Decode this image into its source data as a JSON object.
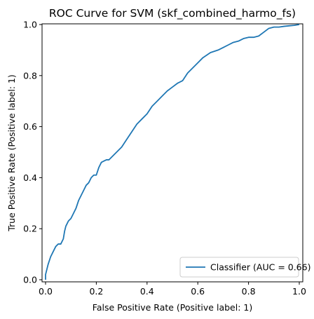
{
  "chart_data": {
    "type": "line",
    "title": "ROC Curve for SVM (skf_combined_harmo_fs)",
    "xlabel": "False Positive Rate (Positive label: 1)",
    "ylabel": "True Positive Rate (Positive label: 1)",
    "xlim": [
      0,
      1
    ],
    "ylim": [
      0,
      1
    ],
    "x_ticks": [
      "0.0",
      "0.2",
      "0.4",
      "0.6",
      "0.8",
      "1.0"
    ],
    "y_ticks": [
      "0.0",
      "0.2",
      "0.4",
      "0.6",
      "0.8",
      "1.0"
    ],
    "grid": false,
    "legend_position": "lower-right",
    "series": [
      {
        "name": "Classifier (AUC = 0.66)",
        "color": "#1f77b4",
        "x": [
          0.0,
          0.0,
          0.005,
          0.01,
          0.02,
          0.03,
          0.04,
          0.05,
          0.06,
          0.07,
          0.075,
          0.08,
          0.085,
          0.09,
          0.1,
          0.11,
          0.12,
          0.13,
          0.14,
          0.15,
          0.16,
          0.17,
          0.18,
          0.19,
          0.2,
          0.21,
          0.22,
          0.23,
          0.24,
          0.25,
          0.27,
          0.3,
          0.32,
          0.34,
          0.36,
          0.38,
          0.4,
          0.42,
          0.44,
          0.46,
          0.48,
          0.5,
          0.52,
          0.54,
          0.56,
          0.58,
          0.6,
          0.62,
          0.65,
          0.68,
          0.7,
          0.72,
          0.74,
          0.76,
          0.78,
          0.8,
          0.82,
          0.84,
          0.86,
          0.88,
          0.9,
          0.92,
          0.94,
          0.96,
          0.98,
          1.0
        ],
        "y": [
          0.0,
          0.02,
          0.04,
          0.06,
          0.09,
          0.11,
          0.13,
          0.14,
          0.14,
          0.16,
          0.19,
          0.21,
          0.22,
          0.23,
          0.24,
          0.26,
          0.28,
          0.31,
          0.33,
          0.35,
          0.37,
          0.38,
          0.4,
          0.41,
          0.41,
          0.44,
          0.46,
          0.465,
          0.47,
          0.47,
          0.49,
          0.52,
          0.55,
          0.58,
          0.61,
          0.63,
          0.65,
          0.68,
          0.7,
          0.72,
          0.74,
          0.755,
          0.77,
          0.78,
          0.81,
          0.83,
          0.85,
          0.87,
          0.89,
          0.9,
          0.91,
          0.92,
          0.93,
          0.935,
          0.945,
          0.95,
          0.95,
          0.955,
          0.97,
          0.985,
          0.99,
          0.99,
          0.993,
          0.995,
          0.997,
          1.0
        ]
      }
    ]
  }
}
